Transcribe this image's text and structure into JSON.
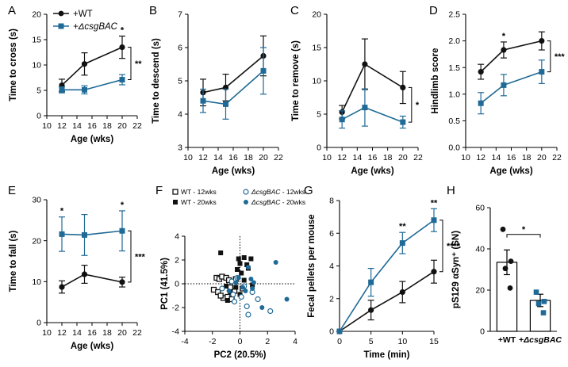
{
  "colors": {
    "wt": "#111111",
    "csg": "#1f6a96",
    "bar_fill": "#ffffff",
    "pca_wt12": "#111111",
    "pca_csg": "#1f6a96"
  },
  "legend": {
    "wt": "+WT",
    "csg": "+ΔcsgBAC"
  },
  "chart_data": [
    {
      "id": "A",
      "letter": "A",
      "type": "line",
      "xlabel": "Age (wks)",
      "ylabel": "Time to cross (s)",
      "xlim": [
        10,
        22
      ],
      "ylim": [
        0,
        20
      ],
      "xticks": [
        10,
        12,
        14,
        16,
        18,
        20,
        22
      ],
      "yticks": [
        0,
        5,
        10,
        15,
        20
      ],
      "x": [
        12,
        15,
        20
      ],
      "series": [
        {
          "name": "+WT",
          "values": [
            6.0,
            10.2,
            13.5
          ],
          "errors": [
            1.2,
            2.2,
            2.2
          ]
        },
        {
          "name": "+ΔcsgBAC",
          "values": [
            5.1,
            5.1,
            7.1
          ],
          "errors": [
            0.6,
            0.8,
            1.0
          ]
        }
      ],
      "annotations": [
        {
          "text": "*",
          "x": 20
        },
        {
          "text": "**",
          "bracket": true
        }
      ]
    },
    {
      "id": "B",
      "letter": "B",
      "type": "line",
      "xlabel": "Age (wks)",
      "ylabel": "Time to descend (s)",
      "xlim": [
        10,
        22
      ],
      "ylim": [
        3,
        7
      ],
      "xticks": [
        10,
        12,
        14,
        16,
        18,
        20,
        22
      ],
      "yticks": [
        3,
        4,
        5,
        6,
        7
      ],
      "x": [
        12,
        15,
        20
      ],
      "series": [
        {
          "name": "+WT",
          "values": [
            4.65,
            4.8,
            5.75
          ],
          "errors": [
            0.4,
            0.4,
            0.6
          ]
        },
        {
          "name": "+ΔcsgBAC",
          "values": [
            4.4,
            4.3,
            5.3
          ],
          "errors": [
            0.35,
            0.45,
            0.7
          ]
        }
      ],
      "annotations": []
    },
    {
      "id": "C",
      "letter": "C",
      "type": "line",
      "xlabel": "Age (wks)",
      "ylabel": "Time to remove (s)",
      "xlim": [
        10,
        22
      ],
      "ylim": [
        0,
        20
      ],
      "xticks": [
        10,
        12,
        14,
        16,
        18,
        20,
        22
      ],
      "yticks": [
        0,
        5,
        10,
        15,
        20
      ],
      "x": [
        12,
        15,
        20
      ],
      "series": [
        {
          "name": "+WT",
          "values": [
            5.3,
            12.5,
            9.0
          ],
          "errors": [
            1.0,
            3.8,
            2.4
          ]
        },
        {
          "name": "+ΔcsgBAC",
          "values": [
            4.2,
            6.0,
            3.8
          ],
          "errors": [
            1.3,
            2.8,
            0.9
          ]
        }
      ],
      "annotations": [
        {
          "text": "*",
          "bracket": true
        }
      ]
    },
    {
      "id": "D",
      "letter": "D",
      "type": "line",
      "xlabel": "Age (wks)",
      "ylabel": "Hindlimb score",
      "xlim": [
        10,
        22
      ],
      "ylim": [
        0,
        2.5
      ],
      "xticks": [
        10,
        12,
        14,
        16,
        18,
        20,
        22
      ],
      "yticks": [
        0,
        0.5,
        1.0,
        1.5,
        2.0,
        2.5
      ],
      "ytick_labels": [
        "0.0",
        "0.5",
        "1.0",
        "1.5",
        "2.0",
        "2.5"
      ],
      "x": [
        12,
        15,
        20
      ],
      "series": [
        {
          "name": "+WT",
          "values": [
            1.42,
            1.83,
            2.0
          ],
          "errors": [
            0.14,
            0.15,
            0.17
          ]
        },
        {
          "name": "+ΔcsgBAC",
          "values": [
            0.83,
            1.17,
            1.42
          ],
          "errors": [
            0.2,
            0.2,
            0.22
          ]
        }
      ],
      "annotations": [
        {
          "text": "*",
          "x": 15
        },
        {
          "text": "***",
          "bracket": true
        }
      ]
    },
    {
      "id": "E",
      "letter": "E",
      "type": "line",
      "xlabel": "Age (wks)",
      "ylabel": "Time to fall (s)",
      "xlim": [
        10,
        22
      ],
      "ylim": [
        0,
        30
      ],
      "xticks": [
        10,
        12,
        14,
        16,
        18,
        20,
        22
      ],
      "yticks": [
        0,
        10,
        20,
        30
      ],
      "x": [
        12,
        15,
        20
      ],
      "series": [
        {
          "name": "+WT",
          "values": [
            8.7,
            11.8,
            9.9
          ],
          "errors": [
            1.5,
            2.2,
            1.2
          ]
        },
        {
          "name": "+ΔcsgBAC",
          "values": [
            21.6,
            21.4,
            22.4
          ],
          "errors": [
            4.2,
            5.0,
            4.9
          ]
        }
      ],
      "annotations": [
        {
          "text": "*",
          "x": 12
        },
        {
          "text": "*",
          "x": 20
        },
        {
          "text": "***",
          "bracket": true
        }
      ]
    },
    {
      "id": "F",
      "letter": "F",
      "type": "scatter",
      "xlabel": "PC2 (20.5%)",
      "ylabel": "PC1 (41.5%)",
      "xlim": [
        -4,
        4
      ],
      "ylim": [
        -4,
        4
      ],
      "xticks": [
        -4,
        -2,
        0,
        2,
        4
      ],
      "yticks": [
        -4,
        -2,
        0,
        2,
        4
      ],
      "legend": [
        {
          "label": "WT - 12wks",
          "marker": "open-square"
        },
        {
          "label": "ΔcsgBAC - 12wks",
          "marker": "open-circle"
        },
        {
          "label": "WT - 20wks",
          "marker": "filled-square"
        },
        {
          "label": "ΔcsgBAC - 20wks",
          "marker": "filled-circle"
        }
      ],
      "series": [
        {
          "name": "WT - 12wks",
          "points": [
            [
              -1.7,
              0.5
            ],
            [
              -1.5,
              0.4
            ],
            [
              -1.3,
              0.6
            ],
            [
              -1.0,
              0.5
            ],
            [
              -0.8,
              0.3
            ],
            [
              -1.9,
              -0.5
            ],
            [
              -1.6,
              -0.7
            ],
            [
              -1.2,
              -1.2
            ],
            [
              -0.9,
              -1.1
            ],
            [
              -0.6,
              -1.3
            ],
            [
              -1.4,
              -1.0
            ],
            [
              -0.3,
              0.4
            ],
            [
              -0.4,
              -0.6
            ],
            [
              0.2,
              -0.4
            ],
            [
              -0.7,
              -0.3
            ]
          ]
        },
        {
          "name": "WT - 20wks",
          "points": [
            [
              -1.4,
              2.6
            ],
            [
              -0.1,
              2.1
            ],
            [
              0.3,
              2.2
            ],
            [
              0.8,
              2.1
            ],
            [
              0.0,
              1.7
            ],
            [
              0.5,
              1.6
            ],
            [
              -0.2,
              1.2
            ],
            [
              0.6,
              1.3
            ],
            [
              0.1,
              0.9
            ],
            [
              -1.0,
              -0.2
            ],
            [
              -0.7,
              -0.7
            ],
            [
              -0.9,
              -1.4
            ],
            [
              0.0,
              -0.9
            ],
            [
              -0.3,
              -0.3
            ],
            [
              0.9,
              -0.1
            ],
            [
              0.3,
              0.3
            ]
          ]
        },
        {
          "name": "ΔcsgBAC - 12wks",
          "points": [
            [
              -1.3,
              -0.4
            ],
            [
              -0.4,
              -1.5
            ],
            [
              0.9,
              -0.7
            ],
            [
              1.3,
              -1.3
            ],
            [
              0.5,
              -1.9
            ],
            [
              0.6,
              -2.6
            ],
            [
              2.2,
              -2.3
            ],
            [
              -0.6,
              0.2
            ],
            [
              0.3,
              -0.2
            ],
            [
              -0.2,
              0.5
            ],
            [
              -0.5,
              -0.9
            ],
            [
              0.1,
              -1.1
            ]
          ]
        },
        {
          "name": "ΔcsgBAC - 20wks",
          "points": [
            [
              2.6,
              1.8
            ],
            [
              0.6,
              1.4
            ],
            [
              0.8,
              0.4
            ],
            [
              0.4,
              -0.6
            ],
            [
              1.6,
              -2.0
            ],
            [
              3.4,
              -1.3
            ],
            [
              -0.1,
              0.5
            ],
            [
              -0.8,
              -0.6
            ],
            [
              0.2,
              -0.3
            ],
            [
              0.9,
              -0.4
            ],
            [
              -0.3,
              0.1
            ],
            [
              1.0,
              0.1
            ]
          ]
        }
      ]
    },
    {
      "id": "G",
      "letter": "G",
      "type": "line",
      "xlabel": "Time (min)",
      "ylabel": "Fecal pellets per mouse",
      "xlim": [
        0,
        15
      ],
      "ylim": [
        0,
        8
      ],
      "xticks": [
        0,
        5,
        10,
        15
      ],
      "yticks": [
        0,
        2,
        4,
        6,
        8
      ],
      "x": [
        0,
        5,
        10,
        15
      ],
      "series": [
        {
          "name": "+WT",
          "values": [
            0,
            1.3,
            2.4,
            3.65
          ],
          "errors": [
            0,
            0.6,
            0.65,
            0.7
          ]
        },
        {
          "name": "+ΔcsgBAC",
          "values": [
            0,
            3.0,
            5.4,
            6.8
          ],
          "errors": [
            0,
            0.85,
            0.65,
            0.7
          ]
        }
      ],
      "annotations": [
        {
          "text": "**",
          "x": 10
        },
        {
          "text": "**",
          "x": 15
        },
        {
          "text": "****",
          "bracket": true
        }
      ]
    },
    {
      "id": "H",
      "letter": "H",
      "type": "bar",
      "ylabel": "pS129 αSyn⁺ (SN)",
      "ylim": [
        0,
        60
      ],
      "yticks": [
        0,
        20,
        40,
        60
      ],
      "categories": [
        "+WT",
        "+ΔcsgBAC"
      ],
      "values": [
        33.5,
        15.0
      ],
      "errors": [
        6.0,
        3.0
      ],
      "points": [
        [
          49.5,
          34.0,
          30.5,
          21.0
        ],
        [
          19.0,
          14.5,
          13.5,
          9.0
        ]
      ],
      "annotations": [
        {
          "text": "*",
          "bracket": true
        }
      ]
    }
  ]
}
